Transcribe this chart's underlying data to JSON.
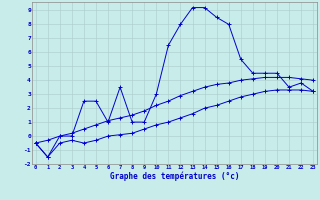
{
  "xlabel": "Graphe des températures (°c)",
  "background_color": "#c8ecea",
  "grid_color": "#aacccc",
  "line_color": "#0000cc",
  "hours": [
    0,
    1,
    2,
    3,
    4,
    5,
    6,
    7,
    8,
    9,
    10,
    11,
    12,
    13,
    14,
    15,
    16,
    17,
    18,
    19,
    20,
    21,
    22,
    23
  ],
  "temp_actual": [
    -0.5,
    -1.5,
    0.0,
    0.0,
    2.5,
    2.5,
    1.0,
    3.5,
    1.0,
    1.0,
    3.0,
    6.5,
    8.0,
    9.2,
    9.2,
    8.5,
    8.0,
    5.5,
    4.5,
    4.5,
    4.5,
    3.5,
    3.8,
    3.2
  ],
  "temp_min": [
    -0.5,
    -1.5,
    -0.5,
    -0.3,
    -0.5,
    -0.3,
    0.0,
    0.1,
    0.2,
    0.5,
    0.8,
    1.0,
    1.3,
    1.6,
    2.0,
    2.2,
    2.5,
    2.8,
    3.0,
    3.2,
    3.3,
    3.3,
    3.3,
    3.2
  ],
  "temp_max": [
    -0.5,
    -0.3,
    0.0,
    0.2,
    0.5,
    0.8,
    1.1,
    1.3,
    1.5,
    1.8,
    2.2,
    2.5,
    2.9,
    3.2,
    3.5,
    3.7,
    3.8,
    4.0,
    4.1,
    4.2,
    4.2,
    4.2,
    4.1,
    4.0
  ],
  "ylim": [
    -2,
    9.6
  ],
  "xlim": [
    -0.3,
    23.3
  ],
  "yticks": [
    -2,
    -1,
    0,
    1,
    2,
    3,
    4,
    5,
    6,
    7,
    8,
    9
  ],
  "xticks": [
    0,
    1,
    2,
    3,
    4,
    5,
    6,
    7,
    8,
    9,
    10,
    11,
    12,
    13,
    14,
    15,
    16,
    17,
    18,
    19,
    20,
    21,
    22,
    23
  ]
}
